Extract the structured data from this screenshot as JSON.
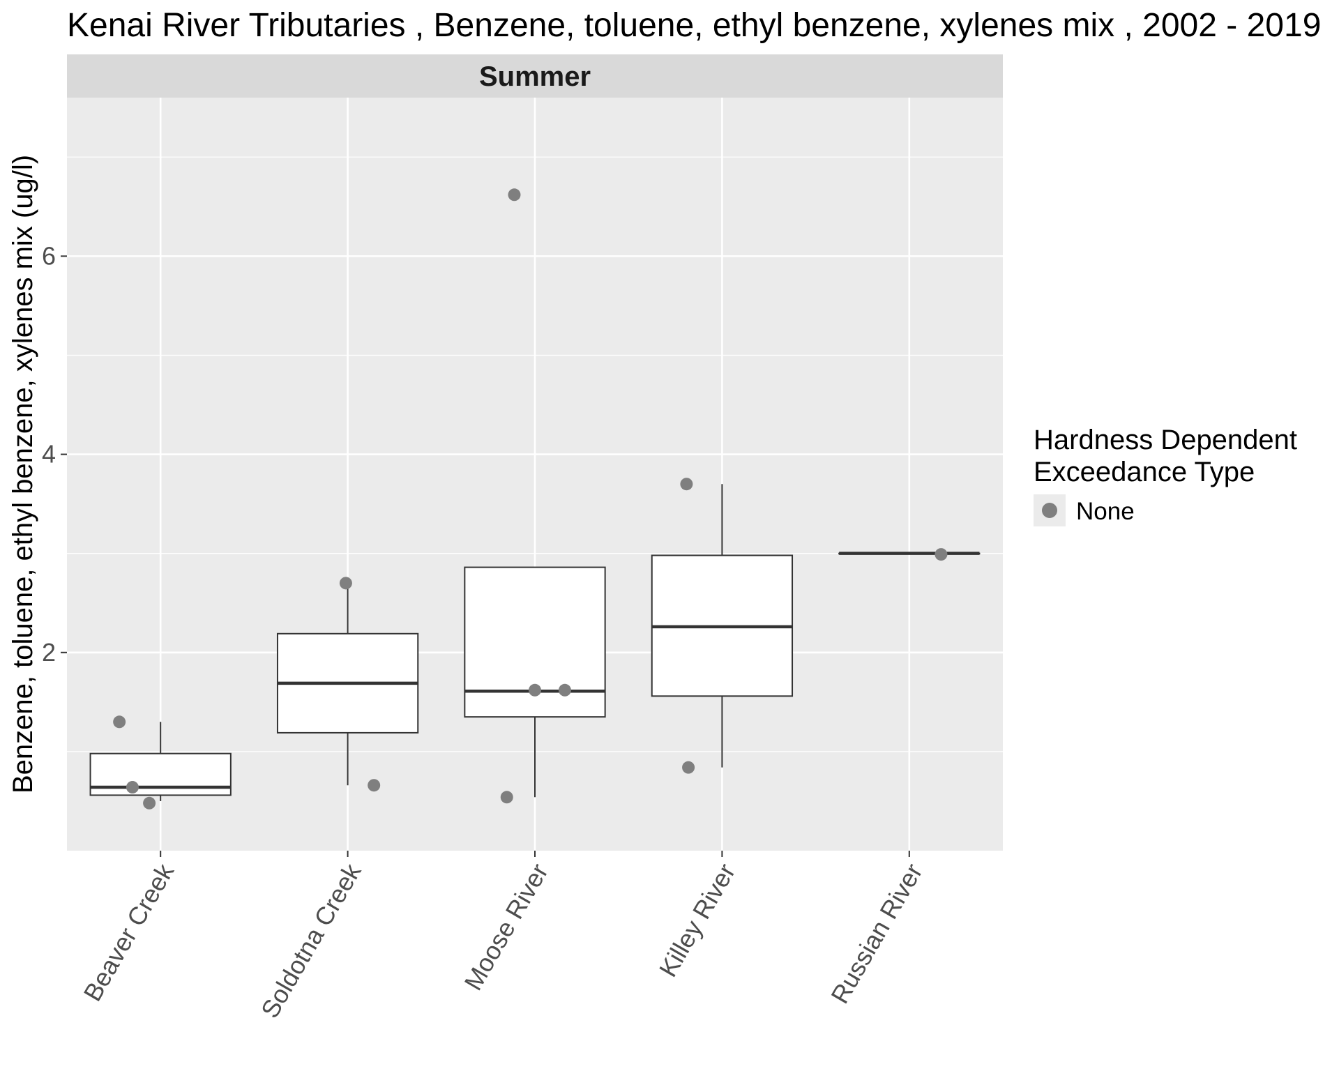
{
  "chart_data": {
    "type": "box",
    "title": "Kenai River Tributaries , Benzene, toluene, ethyl benzene, xylenes mix , 2002 - 2019",
    "facet": "Summer",
    "xlabel": "",
    "ylabel": "Benzene, toluene, ethyl benzene, xylenes mix (ug/l)",
    "ylim": [
      0.0,
      7.6
    ],
    "yticks": [
      2,
      4,
      6
    ],
    "grid": true,
    "categories": [
      "Beaver Creek",
      "Soldotna Creek",
      "Moose River",
      "Killey River",
      "Russian River"
    ],
    "boxes": [
      {
        "category": "Beaver Creek",
        "min": 0.5,
        "q1": 0.56,
        "median": 0.64,
        "q3": 0.98,
        "max": 1.3
      },
      {
        "category": "Soldotna Creek",
        "min": 0.66,
        "q1": 1.19,
        "median": 1.69,
        "q3": 2.19,
        "max": 2.7
      },
      {
        "category": "Moose River",
        "min": 0.54,
        "q1": 1.35,
        "median": 1.61,
        "q3": 2.86,
        "max": 2.86
      },
      {
        "category": "Killey River",
        "min": 0.84,
        "q1": 1.56,
        "median": 2.26,
        "q3": 2.98,
        "max": 3.7
      },
      {
        "category": "Russian River",
        "min": 3.0,
        "q1": 3.0,
        "median": 3.0,
        "q3": 3.0,
        "max": 3.0
      }
    ],
    "points": [
      {
        "category": "Beaver Creek",
        "y": 1.3,
        "offset": -0.22
      },
      {
        "category": "Beaver Creek",
        "y": 0.64,
        "offset": -0.15
      },
      {
        "category": "Beaver Creek",
        "y": 0.48,
        "offset": -0.06
      },
      {
        "category": "Soldotna Creek",
        "y": 2.7,
        "offset": -0.01
      },
      {
        "category": "Soldotna Creek",
        "y": 0.66,
        "offset": 0.14
      },
      {
        "category": "Moose River",
        "y": 6.62,
        "offset": -0.11
      },
      {
        "category": "Moose River",
        "y": 1.62,
        "offset": 0.0
      },
      {
        "category": "Moose River",
        "y": 1.62,
        "offset": 0.16
      },
      {
        "category": "Moose River",
        "y": 0.54,
        "offset": -0.15
      },
      {
        "category": "Killey River",
        "y": 3.7,
        "offset": -0.19
      },
      {
        "category": "Killey River",
        "y": 0.84,
        "offset": -0.18
      },
      {
        "category": "Russian River",
        "y": 2.99,
        "offset": 0.17
      }
    ],
    "legend": {
      "title_lines": [
        "Hardness Dependent",
        "Exceedance Type"
      ],
      "entries": [
        {
          "label": "None",
          "color": "#7f7f7f"
        }
      ],
      "placement": "right"
    },
    "colors": {
      "panel_bg": "#ebebeb",
      "strip_bg": "#d9d9d9",
      "grid": "#ffffff",
      "box_fill": "#ffffff",
      "box_line": "#333333",
      "point": "#7f7f7f"
    }
  }
}
